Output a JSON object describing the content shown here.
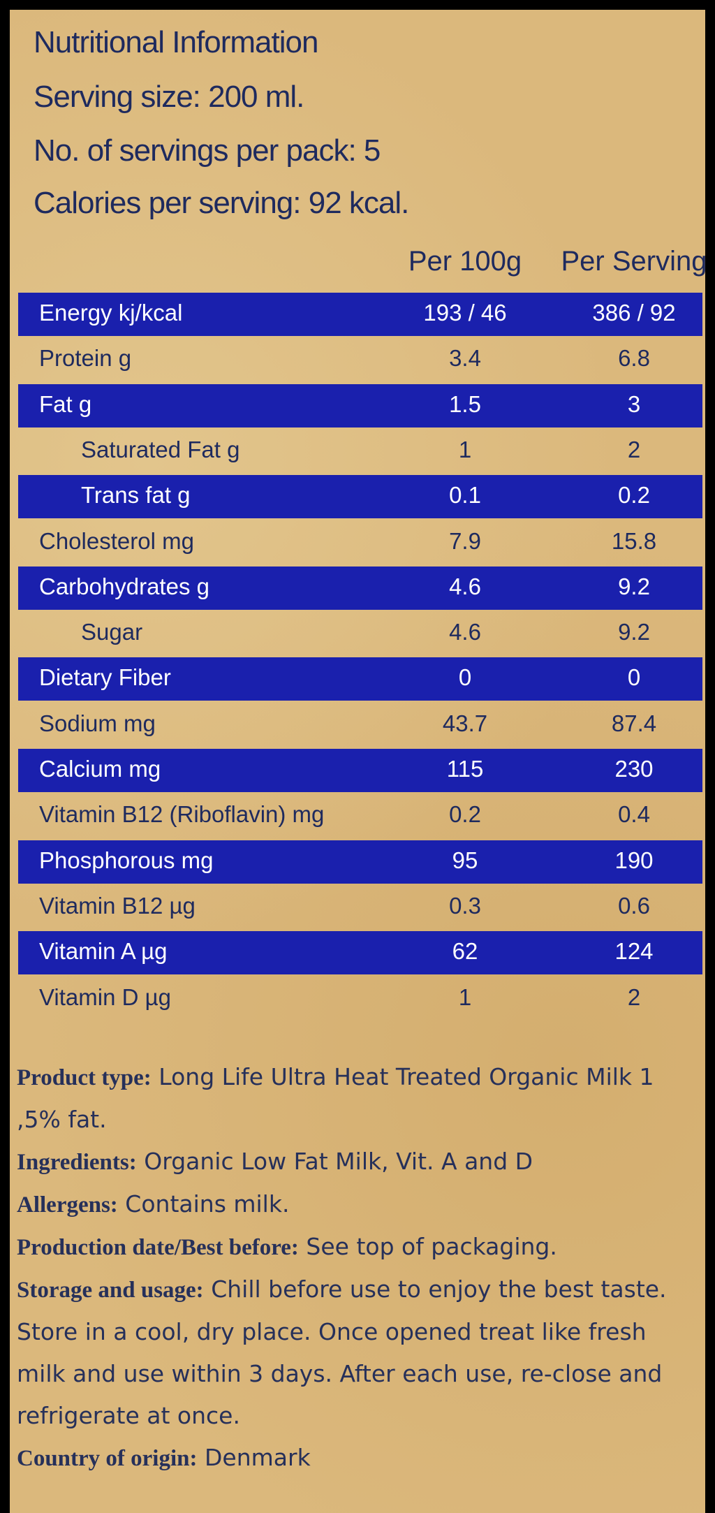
{
  "header": {
    "title": "Nutritional Information",
    "lines": [
      "Serving size: 200 ml.",
      "No. of servings per pack: 5",
      "Calories per serving: 92 kcal."
    ]
  },
  "table": {
    "columns": [
      "Per 100g",
      "Per Serving"
    ],
    "rows": [
      {
        "name": "Energy kj/kcal",
        "values": [
          "193 / 46",
          "386 / 92"
        ]
      },
      {
        "name": "Protein g",
        "values": [
          "3.4",
          "6.8"
        ]
      },
      {
        "name": "Fat g",
        "values": [
          "1.5",
          "3"
        ],
        "sub": [
          {
            "name": "Saturated Fat g",
            "values": [
              "1",
              "2"
            ]
          },
          {
            "name": "Trans fat g",
            "values": [
              "0.1",
              "0.2"
            ]
          }
        ]
      },
      {
        "name": "Cholesterol mg",
        "values": [
          "7.9",
          "15.8"
        ]
      },
      {
        "name": "Carbohydrates g",
        "values": [
          "4.6",
          "9.2"
        ],
        "sub": [
          {
            "name": "Sugar",
            "values": [
              "4.6",
              "9.2"
            ]
          }
        ]
      },
      {
        "name": "Dietary Fiber",
        "values": [
          "0",
          "0"
        ]
      },
      {
        "name": "Sodium mg",
        "values": [
          "43.7",
          "87.4"
        ]
      },
      {
        "name": "Calcium mg",
        "values": [
          "115",
          "230"
        ]
      },
      {
        "name": "Vitamin B12 (Riboflavin) mg",
        "values": [
          "0.2",
          "0.4"
        ]
      },
      {
        "name": "Phosphorous mg",
        "values": [
          "95",
          "190"
        ]
      },
      {
        "name": "Vitamin B12 µg",
        "values": [
          "0.3",
          "0.6"
        ]
      },
      {
        "name": "Vitamin A µg",
        "values": [
          "62",
          "124"
        ]
      },
      {
        "name": "Vitamin D µg",
        "values": [
          "1",
          "2"
        ]
      }
    ]
  },
  "details": [
    {
      "label": "Product type:",
      "text": "Long Life Ultra Heat Treated Organic Milk 1 ,5% fat."
    },
    {
      "label": "Ingredients:",
      "text": "Organic Low Fat Milk, Vit. A and D"
    },
    {
      "label": "Allergens:",
      "text": "Contains milk."
    },
    {
      "label": "Production date/Best before:",
      "text": "See top of packaging."
    },
    {
      "label": "Storage and usage:",
      "text": "Chill before use to enjoy the best taste. Store in a cool, dry place. Once opened treat like fresh milk and use within 3 days. After each use, re-close and refrigerate at once."
    },
    {
      "label": "Country of origin:",
      "text": "Denmark"
    }
  ]
}
